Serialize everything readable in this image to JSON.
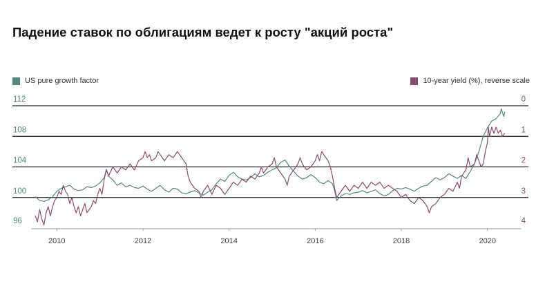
{
  "title": "Падение ставок по облигациям ведет к росту \"акций роста\"",
  "colors": {
    "growth": "#4e8a80",
    "yield": "#8a4a6e",
    "gridline": "#222222",
    "axis_text": "#444444"
  },
  "legend": {
    "growth_label": "US pure growth factor",
    "yield_label": "10-year yield (%), reverse scale"
  },
  "chart_data": {
    "type": "line",
    "x_ticks": [
      "2010",
      "2012",
      "2014",
      "2016",
      "2018",
      "2020"
    ],
    "xlim": [
      2009.45,
      2020.55
    ],
    "left_axis": {
      "ticks": [
        "112",
        "108",
        "104",
        "100",
        "96"
      ],
      "ylim": [
        96,
        112
      ]
    },
    "right_axis": {
      "ticks": [
        "0",
        "1",
        "2",
        "3",
        "4"
      ],
      "ylim": [
        4,
        0
      ],
      "reverse": true
    },
    "series": [
      {
        "name": "US pure growth factor",
        "axis": "left",
        "points": [
          [
            2009.5,
            100.1
          ],
          [
            2009.6,
            99.6
          ],
          [
            2009.7,
            99.5
          ],
          [
            2009.8,
            99.7
          ],
          [
            2009.9,
            100.1
          ],
          [
            2010.0,
            100.8
          ],
          [
            2010.1,
            101.2
          ],
          [
            2010.2,
            101.4
          ],
          [
            2010.3,
            101.6
          ],
          [
            2010.4,
            101.1
          ],
          [
            2010.5,
            100.9
          ],
          [
            2010.6,
            101.0
          ],
          [
            2010.7,
            101.4
          ],
          [
            2010.8,
            101.3
          ],
          [
            2010.9,
            101.5
          ],
          [
            2011.0,
            101.9
          ],
          [
            2011.1,
            102.6
          ],
          [
            2011.15,
            103.7
          ],
          [
            2011.2,
            102.8
          ],
          [
            2011.3,
            102.3
          ],
          [
            2011.4,
            101.6
          ],
          [
            2011.5,
            101.9
          ],
          [
            2011.6,
            101.4
          ],
          [
            2011.7,
            101.6
          ],
          [
            2011.8,
            101.3
          ],
          [
            2011.9,
            101.2
          ],
          [
            2012.0,
            101.5
          ],
          [
            2012.1,
            101.1
          ],
          [
            2012.2,
            100.8
          ],
          [
            2012.3,
            101.2
          ],
          [
            2012.4,
            101.6
          ],
          [
            2012.5,
            101.0
          ],
          [
            2012.6,
            100.7
          ],
          [
            2012.7,
            101.2
          ],
          [
            2012.8,
            101.1
          ],
          [
            2012.9,
            100.6
          ],
          [
            2013.0,
            100.5
          ],
          [
            2013.1,
            100.7
          ],
          [
            2013.2,
            100.9
          ],
          [
            2013.3,
            100.6
          ],
          [
            2013.4,
            100.3
          ],
          [
            2013.5,
            100.7
          ],
          [
            2013.6,
            101.0
          ],
          [
            2013.7,
            101.8
          ],
          [
            2013.8,
            102.4
          ],
          [
            2013.9,
            102.1
          ],
          [
            2014.0,
            102.9
          ],
          [
            2014.1,
            103.3
          ],
          [
            2014.2,
            102.7
          ],
          [
            2014.3,
            102.4
          ],
          [
            2014.4,
            102.3
          ],
          [
            2014.5,
            102.6
          ],
          [
            2014.6,
            103.1
          ],
          [
            2014.7,
            102.7
          ],
          [
            2014.8,
            102.9
          ],
          [
            2014.9,
            103.3
          ],
          [
            2015.0,
            103.6
          ],
          [
            2015.1,
            103.9
          ],
          [
            2015.2,
            104.6
          ],
          [
            2015.3,
            104.9
          ],
          [
            2015.4,
            104.1
          ],
          [
            2015.5,
            103.4
          ],
          [
            2015.6,
            102.8
          ],
          [
            2015.7,
            102.4
          ],
          [
            2015.8,
            102.6
          ],
          [
            2015.9,
            103.0
          ],
          [
            2016.0,
            102.6
          ],
          [
            2016.1,
            102.0
          ],
          [
            2016.2,
            101.8
          ],
          [
            2016.3,
            102.2
          ],
          [
            2016.4,
            101.8
          ],
          [
            2016.45,
            100.9
          ],
          [
            2016.5,
            99.6
          ],
          [
            2016.6,
            100.2
          ],
          [
            2016.7,
            100.5
          ],
          [
            2016.8,
            100.4
          ],
          [
            2016.9,
            100.6
          ],
          [
            2017.0,
            100.7
          ],
          [
            2017.1,
            100.9
          ],
          [
            2017.2,
            100.6
          ],
          [
            2017.3,
            100.8
          ],
          [
            2017.4,
            101.0
          ],
          [
            2017.5,
            100.5
          ],
          [
            2017.6,
            100.2
          ],
          [
            2017.7,
            100.4
          ],
          [
            2017.8,
            100.9
          ],
          [
            2017.9,
            101.2
          ],
          [
            2018.0,
            101.1
          ],
          [
            2018.1,
            101.3
          ],
          [
            2018.2,
            101.1
          ],
          [
            2018.3,
            100.8
          ],
          [
            2018.4,
            101.2
          ],
          [
            2018.5,
            101.5
          ],
          [
            2018.6,
            101.6
          ],
          [
            2018.7,
            102.1
          ],
          [
            2018.8,
            102.6
          ],
          [
            2018.9,
            102.3
          ],
          [
            2019.0,
            102.6
          ],
          [
            2019.1,
            103.1
          ],
          [
            2019.2,
            102.8
          ],
          [
            2019.3,
            102.5
          ],
          [
            2019.4,
            102.9
          ],
          [
            2019.5,
            102.5
          ],
          [
            2019.6,
            103.4
          ],
          [
            2019.7,
            104.4
          ],
          [
            2019.8,
            106.0
          ],
          [
            2019.9,
            108.0
          ],
          [
            2020.0,
            109.1
          ],
          [
            2020.1,
            110.0
          ],
          [
            2020.2,
            110.3
          ],
          [
            2020.3,
            111.0
          ],
          [
            2020.32,
            111.6
          ],
          [
            2020.38,
            110.6
          ],
          [
            2020.4,
            111.2
          ]
        ]
      },
      {
        "name": "10-year yield (%), reverse scale",
        "axis": "right",
        "points": [
          [
            2009.5,
            3.6
          ],
          [
            2009.55,
            3.8
          ],
          [
            2009.6,
            3.4
          ],
          [
            2009.65,
            3.7
          ],
          [
            2009.7,
            3.9
          ],
          [
            2009.75,
            3.5
          ],
          [
            2009.8,
            3.3
          ],
          [
            2009.85,
            3.6
          ],
          [
            2009.9,
            3.3
          ],
          [
            2009.95,
            3.1
          ],
          [
            2010.0,
            3.0
          ],
          [
            2010.05,
            2.8
          ],
          [
            2010.1,
            2.9
          ],
          [
            2010.15,
            2.6
          ],
          [
            2010.2,
            2.8
          ],
          [
            2010.25,
            2.9
          ],
          [
            2010.3,
            3.2
          ],
          [
            2010.35,
            3.0
          ],
          [
            2010.4,
            3.3
          ],
          [
            2010.45,
            3.5
          ],
          [
            2010.5,
            3.3
          ],
          [
            2010.55,
            3.6
          ],
          [
            2010.6,
            3.4
          ],
          [
            2010.65,
            3.2
          ],
          [
            2010.7,
            3.5
          ],
          [
            2010.8,
            3.3
          ],
          [
            2010.85,
            3.1
          ],
          [
            2010.9,
            3.2
          ],
          [
            2010.95,
            2.9
          ],
          [
            2011.0,
            2.7
          ],
          [
            2011.05,
            2.9
          ],
          [
            2011.1,
            2.4
          ],
          [
            2011.15,
            2.1
          ],
          [
            2011.2,
            2.3
          ],
          [
            2011.3,
            2.0
          ],
          [
            2011.4,
            2.2
          ],
          [
            2011.5,
            2.0
          ],
          [
            2011.6,
            2.1
          ],
          [
            2011.7,
            1.9
          ],
          [
            2011.8,
            2.1
          ],
          [
            2011.9,
            1.8
          ],
          [
            2012.0,
            1.7
          ],
          [
            2012.05,
            1.5
          ],
          [
            2012.1,
            1.7
          ],
          [
            2012.15,
            1.6
          ],
          [
            2012.2,
            1.8
          ],
          [
            2012.3,
            1.7
          ],
          [
            2012.35,
            1.5
          ],
          [
            2012.4,
            1.6
          ],
          [
            2012.5,
            1.8
          ],
          [
            2012.6,
            1.6
          ],
          [
            2012.7,
            1.7
          ],
          [
            2012.8,
            1.5
          ],
          [
            2012.9,
            1.7
          ],
          [
            2013.0,
            1.9
          ],
          [
            2013.05,
            2.3
          ],
          [
            2013.1,
            2.5
          ],
          [
            2013.2,
            2.7
          ],
          [
            2013.3,
            2.8
          ],
          [
            2013.35,
            3.0
          ],
          [
            2013.4,
            2.8
          ],
          [
            2013.5,
            2.6
          ],
          [
            2013.6,
            2.9
          ],
          [
            2013.7,
            2.6
          ],
          [
            2013.8,
            2.7
          ],
          [
            2013.9,
            2.9
          ],
          [
            2014.0,
            2.7
          ],
          [
            2014.1,
            2.5
          ],
          [
            2014.2,
            2.6
          ],
          [
            2014.3,
            2.4
          ],
          [
            2014.4,
            2.5
          ],
          [
            2014.5,
            2.3
          ],
          [
            2014.6,
            2.4
          ],
          [
            2014.7,
            2.2
          ],
          [
            2014.75,
            2.0
          ],
          [
            2014.8,
            2.2
          ],
          [
            2014.9,
            2.0
          ],
          [
            2015.0,
            1.9
          ],
          [
            2015.05,
            1.7
          ],
          [
            2015.1,
            2.0
          ],
          [
            2015.2,
            2.2
          ],
          [
            2015.3,
            2.4
          ],
          [
            2015.35,
            2.6
          ],
          [
            2015.4,
            2.3
          ],
          [
            2015.5,
            2.1
          ],
          [
            2015.6,
            1.9
          ],
          [
            2015.65,
            1.7
          ],
          [
            2015.7,
            1.9
          ],
          [
            2015.8,
            2.1
          ],
          [
            2015.9,
            2.0
          ],
          [
            2016.0,
            1.8
          ],
          [
            2016.05,
            1.6
          ],
          [
            2016.1,
            1.8
          ],
          [
            2016.15,
            1.5
          ],
          [
            2016.2,
            1.6
          ],
          [
            2016.3,
            1.8
          ],
          [
            2016.35,
            2.0
          ],
          [
            2016.4,
            2.3
          ],
          [
            2016.45,
            2.7
          ],
          [
            2016.5,
            3.0
          ],
          [
            2016.6,
            2.8
          ],
          [
            2016.7,
            2.6
          ],
          [
            2016.8,
            2.8
          ],
          [
            2016.9,
            2.6
          ],
          [
            2017.0,
            2.7
          ],
          [
            2017.1,
            2.5
          ],
          [
            2017.2,
            2.7
          ],
          [
            2017.3,
            2.5
          ],
          [
            2017.4,
            2.6
          ],
          [
            2017.5,
            2.5
          ],
          [
            2017.6,
            2.7
          ],
          [
            2017.7,
            2.6
          ],
          [
            2017.8,
            2.7
          ],
          [
            2017.9,
            2.8
          ],
          [
            2018.0,
            3.0
          ],
          [
            2018.1,
            2.9
          ],
          [
            2018.2,
            3.1
          ],
          [
            2018.3,
            3.2
          ],
          [
            2018.4,
            3.0
          ],
          [
            2018.5,
            3.1
          ],
          [
            2018.6,
            3.3
          ],
          [
            2018.65,
            3.5
          ],
          [
            2018.7,
            3.3
          ],
          [
            2018.8,
            3.2
          ],
          [
            2018.9,
            3.0
          ],
          [
            2019.0,
            2.9
          ],
          [
            2019.1,
            2.7
          ],
          [
            2019.2,
            2.8
          ],
          [
            2019.3,
            2.5
          ],
          [
            2019.35,
            2.7
          ],
          [
            2019.4,
            2.3
          ],
          [
            2019.5,
            2.1
          ],
          [
            2019.55,
            1.7
          ],
          [
            2019.6,
            2.0
          ],
          [
            2019.7,
            1.9
          ],
          [
            2019.75,
            1.6
          ],
          [
            2019.8,
            1.8
          ],
          [
            2019.85,
            2.0
          ],
          [
            2019.9,
            1.9
          ],
          [
            2019.95,
            1.5
          ],
          [
            2020.0,
            1.2
          ],
          [
            2020.02,
            0.7
          ],
          [
            2020.05,
            1.0
          ],
          [
            2020.1,
            0.7
          ],
          [
            2020.15,
            0.9
          ],
          [
            2020.2,
            0.7
          ],
          [
            2020.25,
            0.9
          ],
          [
            2020.3,
            0.8
          ],
          [
            2020.35,
            1.0
          ],
          [
            2020.4,
            0.9
          ]
        ]
      }
    ]
  }
}
